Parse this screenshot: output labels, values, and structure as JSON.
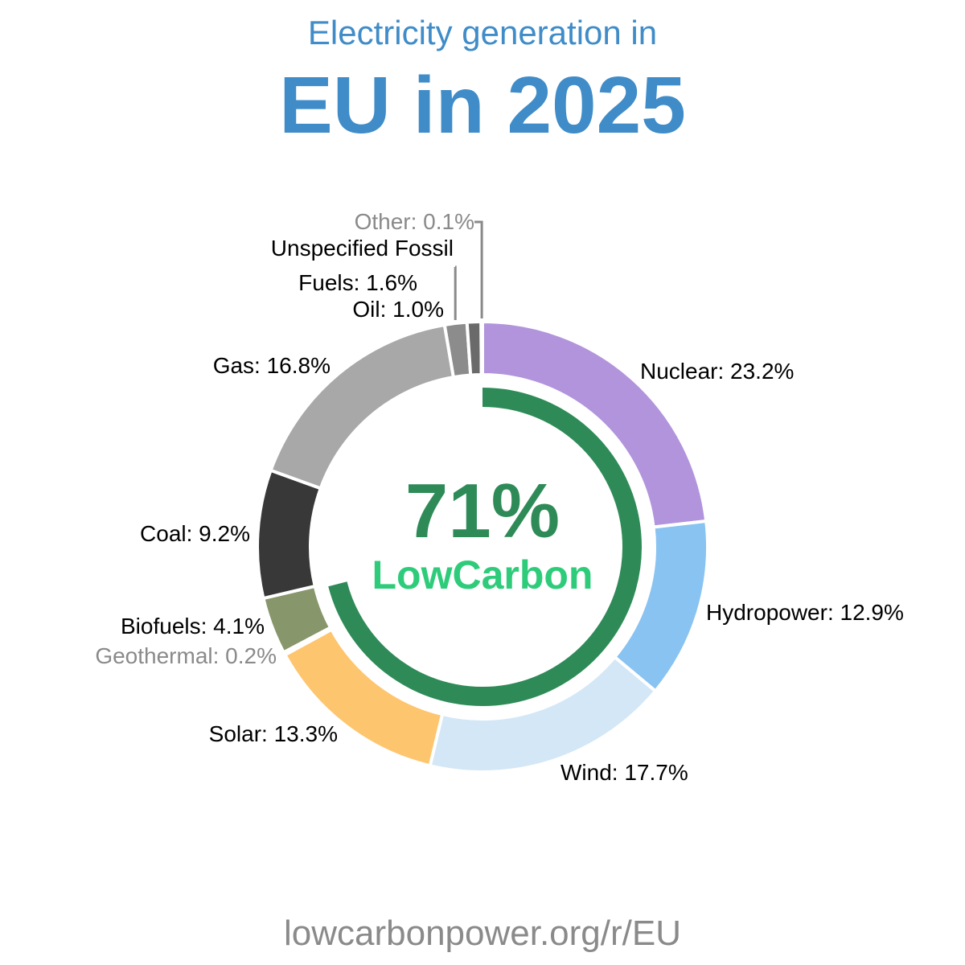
{
  "subtitle": "Electricity generation in",
  "title": "EU in 2025",
  "footer": "lowcarbonpower.org/r/EU",
  "center": {
    "value": "71%",
    "label": "LowCarbon",
    "fraction": 0.71
  },
  "colors": {
    "title": "#3f8cc8",
    "lowcarbon_ring": "#2e8b57",
    "lowcarbon_text": "#2ecc7a"
  },
  "chart_data": {
    "type": "pie",
    "series": [
      {
        "name": "Nuclear",
        "label": "Nuclear: 23.2%",
        "value": 23.2,
        "color": "#b294dc"
      },
      {
        "name": "Hydropower",
        "label": "Hydropower: 12.9%",
        "value": 12.9,
        "color": "#88c3f2"
      },
      {
        "name": "Wind",
        "label": "Wind: 17.7%",
        "value": 17.7,
        "color": "#d3e7f6"
      },
      {
        "name": "Solar",
        "label": "Solar: 13.3%",
        "value": 13.3,
        "color": "#fec56f"
      },
      {
        "name": "Geothermal",
        "label": "Geothermal: 0.2%",
        "value": 0.2,
        "color": "#e06040"
      },
      {
        "name": "Biofuels",
        "label": "Biofuels: 4.1%",
        "value": 4.1,
        "color": "#88966b"
      },
      {
        "name": "Coal",
        "label": "Coal: 9.2%",
        "value": 9.2,
        "color": "#383838"
      },
      {
        "name": "Gas",
        "label": "Gas: 16.8%",
        "value": 16.8,
        "color": "#a8a8a8"
      },
      {
        "name": "Unspecified Fossil Fuels",
        "label_line1": "Unspecified Fossil",
        "label_line2": "Fuels: 1.6%",
        "value": 1.6,
        "color": "#8c8c8c"
      },
      {
        "name": "Oil",
        "label": "Oil: 1.0%",
        "value": 1.0,
        "color": "#6a6a6a"
      },
      {
        "name": "Other",
        "label": "Other: 0.1%",
        "value": 0.1,
        "color": "#9a9a9a"
      }
    ]
  }
}
